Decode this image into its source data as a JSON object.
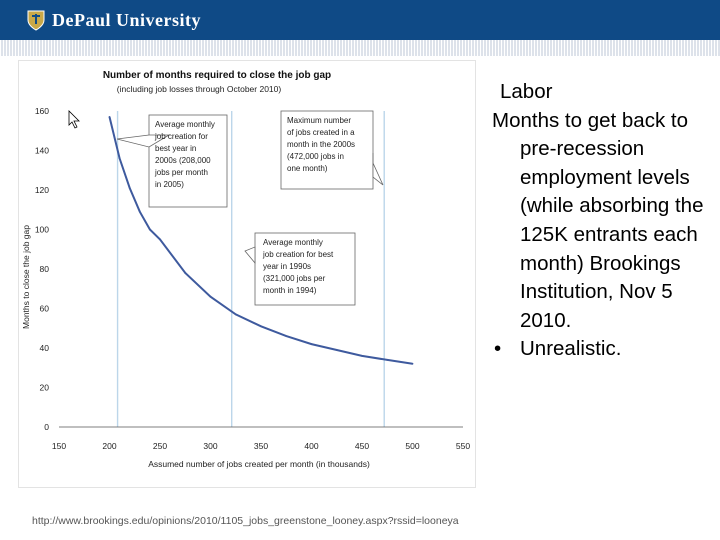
{
  "header": {
    "university": "DePaul University",
    "logo_icon": "shield-logo-icon",
    "banner_color": "#0f4a86"
  },
  "panel": {
    "heading": "Labor",
    "body": "Months to get back to pre-recession employment levels (while absorbing the 125K entrants each month) Brookings Institution, Nov 5 2010.",
    "bullet": "Unrealistic."
  },
  "source": {
    "url": "http://www.brookings.edu/opinions/2010/1105_jobs_greenstone_looney.aspx?rssid=looneya"
  },
  "chart_data": {
    "type": "line",
    "title": "Number of months required to close the job gap",
    "subtitle": "(including job losses through October 2010)",
    "xlabel": "Assumed number of jobs created per month (in thousands)",
    "ylabel": "Months to close the job gap",
    "xlim": [
      150,
      550
    ],
    "ylim": [
      0,
      160
    ],
    "xticks": [
      150,
      200,
      250,
      300,
      350,
      400,
      450,
      500,
      550
    ],
    "yticks": [
      0,
      20,
      40,
      60,
      80,
      100,
      120,
      140,
      160
    ],
    "grid": false,
    "line_color": "#3e5a9e",
    "marker_color": "#bcd6ea",
    "series": [
      {
        "x": [
          200,
          210,
          220,
          230,
          240,
          250,
          275,
          300,
          325,
          350,
          375,
          400,
          425,
          450,
          475,
          500
        ],
        "y": [
          157,
          136,
          121,
          109,
          100,
          95,
          78,
          66,
          57,
          51,
          46,
          42,
          39,
          36,
          34,
          32
        ]
      }
    ],
    "reference_lines": [
      {
        "x": 208,
        "label": "Average monthly job creation for best year in 2000s (208,000 jobs per month in 2005)"
      },
      {
        "x": 321,
        "label": "Average monthly job creation for best year in 1990s (321,000 jobs per month in 1994)"
      },
      {
        "x": 472,
        "label": "Maximum number of jobs created in a month in the 2000s (472,000 jobs in one month)"
      }
    ],
    "annotations": [
      {
        "lines": [
          "Average monthly",
          "job creation for",
          "best year in",
          "2000s (208,000",
          "jobs per month",
          "in 2005)"
        ]
      },
      {
        "lines": [
          "Maximum number",
          "of jobs created in a",
          "month in the 2000s",
          "(472,000 jobs in",
          "one month)"
        ]
      },
      {
        "lines": [
          "Average monthly",
          "job creation for best",
          "year in 1990s",
          "(321,000 jobs per",
          "month in 1994)"
        ]
      }
    ]
  }
}
